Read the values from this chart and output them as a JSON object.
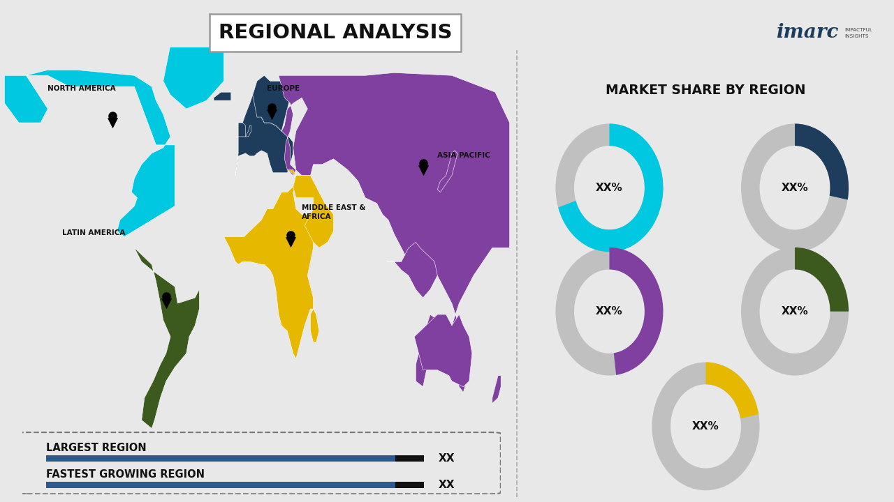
{
  "title": "REGIONAL ANALYSIS",
  "right_title": "MARKET SHARE BY REGION",
  "bg_color": "#e8e8e8",
  "regions": [
    {
      "name": "NORTH AMERICA",
      "color": "#00c8e0"
    },
    {
      "name": "EUROPE",
      "color": "#1e3d5c"
    },
    {
      "name": "ASIA PACIFIC",
      "color": "#8040a0"
    },
    {
      "name": "MIDDLE EAST & AFRICA",
      "color": "#e6b800"
    },
    {
      "name": "LATIN AMERICA",
      "color": "#3d5a1e"
    }
  ],
  "donut_label": "XX%",
  "donut_bg_color": "#c0c0c0",
  "donut_values": [
    0.7,
    0.28,
    0.48,
    0.25,
    0.22
  ],
  "largest_region_label": "LARGEST REGION",
  "fastest_growing_label": "FASTEST GROWING REGION",
  "largest_region_val": "XX",
  "fastest_growing_val": "XX",
  "bar_main_color": "#2d5a8e",
  "bar_dark_color": "#111111",
  "imarc_color": "#1e3d5c"
}
